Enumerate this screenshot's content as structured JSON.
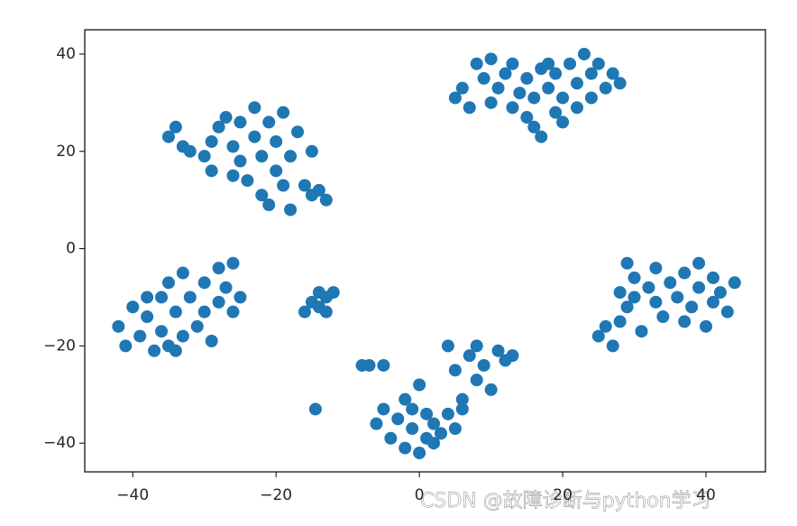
{
  "chart_data": {
    "type": "scatter",
    "color": "#1f77b4",
    "x": [
      5,
      6,
      7,
      8,
      9,
      10,
      10,
      11,
      12,
      13,
      13,
      14,
      15,
      16,
      16,
      17,
      17,
      18,
      19,
      19,
      20,
      20,
      21,
      22,
      22,
      23,
      24,
      24,
      25,
      26,
      27,
      28,
      18,
      15,
      -35,
      -34,
      -33,
      -32,
      -30,
      -29,
      -28,
      -27,
      -26,
      -25,
      -25,
      -24,
      -23,
      -23,
      -22,
      -22,
      -21,
      -21,
      -20,
      -20,
      -19,
      -19,
      -18,
      -18,
      -17,
      -16,
      -15,
      -15,
      -14,
      -13,
      -29,
      -26,
      -42,
      -41,
      -40,
      -39,
      -38,
      -37,
      -36,
      -36,
      -35,
      -35,
      -34,
      -33,
      -33,
      -32,
      -31,
      -30,
      -30,
      -29,
      -28,
      -28,
      -27,
      -26,
      -26,
      -25,
      -38,
      -34,
      -16,
      -15,
      -14,
      -13,
      -12,
      -14,
      -13,
      25,
      26,
      27,
      28,
      28,
      29,
      29,
      30,
      31,
      32,
      33,
      33,
      34,
      35,
      36,
      37,
      37,
      38,
      39,
      39,
      40,
      41,
      41,
      42,
      43,
      44,
      30,
      -8,
      -7,
      -5,
      -6,
      -5,
      -4,
      -3,
      -2,
      -2,
      -1,
      0,
      0,
      1,
      1,
      2,
      3,
      4,
      5,
      6,
      -1,
      2,
      4,
      5,
      6,
      7,
      8,
      8,
      9,
      10,
      11,
      12,
      13,
      -14.5
    ],
    "y": [
      31,
      33,
      29,
      38,
      35,
      39,
      30,
      33,
      36,
      29,
      38,
      32,
      35,
      31,
      25,
      37,
      23,
      33,
      28,
      36,
      31,
      26,
      38,
      34,
      29,
      40,
      36,
      31,
      38,
      33,
      36,
      34,
      38,
      27,
      23,
      25,
      21,
      20,
      19,
      22,
      25,
      27,
      21,
      18,
      26,
      14,
      23,
      29,
      11,
      19,
      26,
      9,
      16,
      22,
      13,
      28,
      8,
      19,
      24,
      13,
      20,
      11,
      12,
      10,
      16,
      15,
      -16,
      -20,
      -12,
      -18,
      -14,
      -21,
      -10,
      -17,
      -7,
      -20,
      -13,
      -18,
      -5,
      -10,
      -16,
      -7,
      -13,
      -19,
      -4,
      -11,
      -8,
      -3,
      -13,
      -10,
      -10,
      -21,
      -13,
      -11,
      -12,
      -10,
      -9,
      -9,
      -13,
      -18,
      -16,
      -20,
      -9,
      -15,
      -3,
      -12,
      -6,
      -17,
      -8,
      -4,
      -11,
      -14,
      -7,
      -10,
      -5,
      -15,
      -12,
      -3,
      -8,
      -16,
      -6,
      -11,
      -9,
      -13,
      -7,
      -10,
      -24,
      -24,
      -24,
      -36,
      -33,
      -39,
      -35,
      -41,
      -31,
      -37,
      -28,
      -42,
      -34,
      -39,
      -36,
      -38,
      -34,
      -37,
      -33,
      -33,
      -40,
      -20,
      -25,
      -31,
      -22,
      -27,
      -20,
      -24,
      -29,
      -21,
      -23,
      -22,
      -33
    ],
    "xlim": [
      -46.7,
      48.3
    ],
    "ylim": [
      -45.9,
      45.0
    ],
    "xticks": [
      {
        "value": -40,
        "label": "−40"
      },
      {
        "value": -20,
        "label": "−20"
      },
      0,
      20,
      40
    ],
    "yticks": [
      40,
      20,
      0,
      {
        "value": -20,
        "label": "−20"
      },
      {
        "value": -40,
        "label": "−40"
      }
    ],
    "watermark": "CSDN @故障诊断与python学习"
  }
}
